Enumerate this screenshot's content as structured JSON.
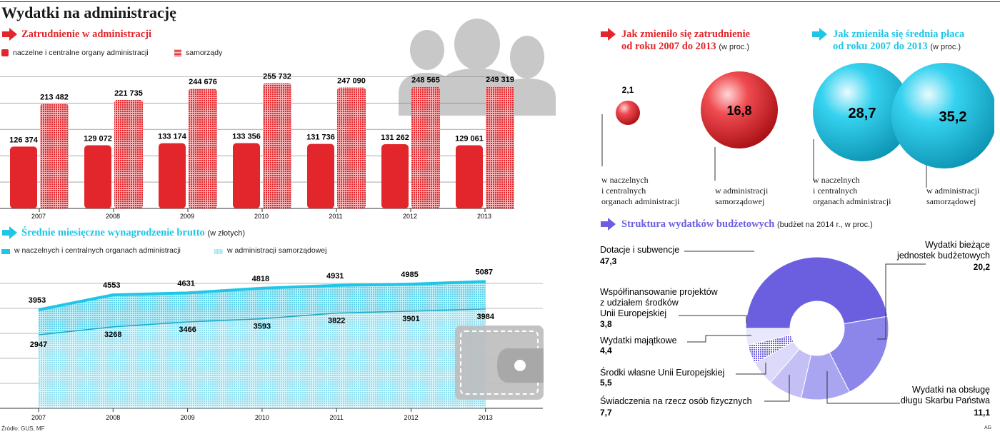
{
  "title": "Wydatki na administrację",
  "source": "Źródło: GUS, MF",
  "agency": "AG",
  "colors": {
    "red": "#e2262b",
    "cyan": "#1fc6e6",
    "purple": "#6b5fe0",
    "gray": "#c8c8c8"
  },
  "employment": {
    "title": "Zatrudnienie w administracji",
    "legend": [
      "naczelne i centralne organy administracji",
      "samorządy"
    ]
  },
  "salary": {
    "title": "Średnie miesięczne wynagrodzenie brutto",
    "note": "(w złotych)",
    "legend": [
      "w naczelnych i centralnych organach administracji",
      "w administracji samorządowej"
    ]
  },
  "employment_change": {
    "title_line1": "Jak zmieniło się zatrudnienie",
    "title_line2": "od roku 2007 do 2013",
    "note": "(w proc.)",
    "central_value": "2,1",
    "local_value": "16,8",
    "central_label": [
      "w naczelnych",
      "i centralnych",
      "organach administracji"
    ],
    "local_label": [
      "w administracji",
      "samorządowej"
    ]
  },
  "salary_change": {
    "title_line1": "Jak zmieniła się średnia płaca",
    "title_line2": "od roku 2007 do 2013",
    "note": "(w proc.)",
    "central_value": "28,7",
    "local_value": "35,2",
    "central_label": [
      "w naczelnych",
      "i centralnych",
      "organach administracji"
    ],
    "local_label": [
      "w administracji",
      "samorządowej"
    ]
  },
  "budget": {
    "title": "Struktura wydatków budżetowych",
    "note": "(budżet na 2014 r., w proc.)"
  },
  "chart_data": [
    {
      "type": "bar",
      "title": "Zatrudnienie w administracji",
      "categories": [
        "2007",
        "2008",
        "2009",
        "2010",
        "2011",
        "2012",
        "2013"
      ],
      "series": [
        {
          "name": "naczelne i centralne organy administracji",
          "values": [
            126374,
            129072,
            133174,
            133356,
            131736,
            131262,
            129061
          ],
          "labels": [
            "126 374",
            "129 072",
            "133 174",
            "133 356",
            "131 736",
            "131 262",
            "129 061"
          ]
        },
        {
          "name": "samorządy",
          "values": [
            213482,
            221735,
            244676,
            255732,
            247090,
            248565,
            249319
          ],
          "labels": [
            "213 482",
            "221 735",
            "244 676",
            "255 732",
            "247 090",
            "248 565",
            "249 319"
          ]
        }
      ],
      "ylim": [
        0,
        280000
      ],
      "grid": true
    },
    {
      "type": "area",
      "title": "Średnie miesięczne wynagrodzenie brutto",
      "x": [
        "2007",
        "2008",
        "2009",
        "2010",
        "2011",
        "2012",
        "2013"
      ],
      "series": [
        {
          "name": "w naczelnych i centralnych organach administracji",
          "values": [
            3953,
            4553,
            4631,
            4818,
            4931,
            4985,
            5087
          ]
        },
        {
          "name": "w administracji samorządowej",
          "values": [
            2947,
            3268,
            3466,
            3593,
            3822,
            3901,
            3984
          ]
        }
      ],
      "ylim": [
        0,
        5500
      ],
      "grid": true
    },
    {
      "type": "pie",
      "title": "Struktura wydatków budżetowych",
      "slices": [
        {
          "label": "Dotacje i subwencje",
          "value": 47.3,
          "display": "47,3",
          "color": "#6b5fe0"
        },
        {
          "label": "Wydatki bieżące jednostek budżetowych",
          "value": 20.2,
          "display": "20,2",
          "color": "#8c85ea"
        },
        {
          "label": "Wydatki na obsługę długu Skarbu Państwa",
          "value": 11.1,
          "display": "11,1",
          "color": "#aaa5f0"
        },
        {
          "label": "Świadczenia na rzecz osób fizycznych",
          "value": 7.7,
          "display": "7,7",
          "color": "#c4c0f5"
        },
        {
          "label": "Środki własne Unii Europejskiej",
          "value": 5.5,
          "display": "5,5",
          "color": "#ddd9fa"
        },
        {
          "label": "Wydatki majątkowe",
          "value": 4.4,
          "display": "4,4",
          "color": "#7d74e4"
        },
        {
          "label": "Współfinansowanie projektów z udziałem środków Unii Europejskiej",
          "value": 3.8,
          "display": "3,8",
          "color": "#b8b3f2"
        }
      ]
    }
  ]
}
